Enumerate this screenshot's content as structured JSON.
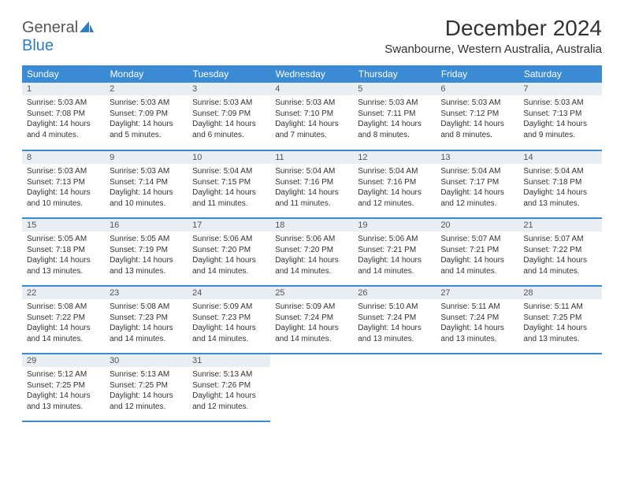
{
  "brand": {
    "name_top": "General",
    "name_bottom": "Blue",
    "top_color": "#666666",
    "bottom_color": "#2e7cc2",
    "icon_color": "#2e7cc2"
  },
  "title": "December 2024",
  "location": "Swanbourne, Western Australia, Australia",
  "header_bg": "#3b8bd4",
  "header_fg": "#ffffff",
  "daynum_bg": "#e9eef2",
  "row_divider": "#3b8bd4",
  "weekdays": [
    "Sunday",
    "Monday",
    "Tuesday",
    "Wednesday",
    "Thursday",
    "Friday",
    "Saturday"
  ],
  "weeks": [
    [
      {
        "n": "1",
        "sunrise": "Sunrise: 5:03 AM",
        "sunset": "Sunset: 7:08 PM",
        "day": "Daylight: 14 hours and 4 minutes."
      },
      {
        "n": "2",
        "sunrise": "Sunrise: 5:03 AM",
        "sunset": "Sunset: 7:09 PM",
        "day": "Daylight: 14 hours and 5 minutes."
      },
      {
        "n": "3",
        "sunrise": "Sunrise: 5:03 AM",
        "sunset": "Sunset: 7:09 PM",
        "day": "Daylight: 14 hours and 6 minutes."
      },
      {
        "n": "4",
        "sunrise": "Sunrise: 5:03 AM",
        "sunset": "Sunset: 7:10 PM",
        "day": "Daylight: 14 hours and 7 minutes."
      },
      {
        "n": "5",
        "sunrise": "Sunrise: 5:03 AM",
        "sunset": "Sunset: 7:11 PM",
        "day": "Daylight: 14 hours and 8 minutes."
      },
      {
        "n": "6",
        "sunrise": "Sunrise: 5:03 AM",
        "sunset": "Sunset: 7:12 PM",
        "day": "Daylight: 14 hours and 8 minutes."
      },
      {
        "n": "7",
        "sunrise": "Sunrise: 5:03 AM",
        "sunset": "Sunset: 7:13 PM",
        "day": "Daylight: 14 hours and 9 minutes."
      }
    ],
    [
      {
        "n": "8",
        "sunrise": "Sunrise: 5:03 AM",
        "sunset": "Sunset: 7:13 PM",
        "day": "Daylight: 14 hours and 10 minutes."
      },
      {
        "n": "9",
        "sunrise": "Sunrise: 5:03 AM",
        "sunset": "Sunset: 7:14 PM",
        "day": "Daylight: 14 hours and 10 minutes."
      },
      {
        "n": "10",
        "sunrise": "Sunrise: 5:04 AM",
        "sunset": "Sunset: 7:15 PM",
        "day": "Daylight: 14 hours and 11 minutes."
      },
      {
        "n": "11",
        "sunrise": "Sunrise: 5:04 AM",
        "sunset": "Sunset: 7:16 PM",
        "day": "Daylight: 14 hours and 11 minutes."
      },
      {
        "n": "12",
        "sunrise": "Sunrise: 5:04 AM",
        "sunset": "Sunset: 7:16 PM",
        "day": "Daylight: 14 hours and 12 minutes."
      },
      {
        "n": "13",
        "sunrise": "Sunrise: 5:04 AM",
        "sunset": "Sunset: 7:17 PM",
        "day": "Daylight: 14 hours and 12 minutes."
      },
      {
        "n": "14",
        "sunrise": "Sunrise: 5:04 AM",
        "sunset": "Sunset: 7:18 PM",
        "day": "Daylight: 14 hours and 13 minutes."
      }
    ],
    [
      {
        "n": "15",
        "sunrise": "Sunrise: 5:05 AM",
        "sunset": "Sunset: 7:18 PM",
        "day": "Daylight: 14 hours and 13 minutes."
      },
      {
        "n": "16",
        "sunrise": "Sunrise: 5:05 AM",
        "sunset": "Sunset: 7:19 PM",
        "day": "Daylight: 14 hours and 13 minutes."
      },
      {
        "n": "17",
        "sunrise": "Sunrise: 5:06 AM",
        "sunset": "Sunset: 7:20 PM",
        "day": "Daylight: 14 hours and 14 minutes."
      },
      {
        "n": "18",
        "sunrise": "Sunrise: 5:06 AM",
        "sunset": "Sunset: 7:20 PM",
        "day": "Daylight: 14 hours and 14 minutes."
      },
      {
        "n": "19",
        "sunrise": "Sunrise: 5:06 AM",
        "sunset": "Sunset: 7:21 PM",
        "day": "Daylight: 14 hours and 14 minutes."
      },
      {
        "n": "20",
        "sunrise": "Sunrise: 5:07 AM",
        "sunset": "Sunset: 7:21 PM",
        "day": "Daylight: 14 hours and 14 minutes."
      },
      {
        "n": "21",
        "sunrise": "Sunrise: 5:07 AM",
        "sunset": "Sunset: 7:22 PM",
        "day": "Daylight: 14 hours and 14 minutes."
      }
    ],
    [
      {
        "n": "22",
        "sunrise": "Sunrise: 5:08 AM",
        "sunset": "Sunset: 7:22 PM",
        "day": "Daylight: 14 hours and 14 minutes."
      },
      {
        "n": "23",
        "sunrise": "Sunrise: 5:08 AM",
        "sunset": "Sunset: 7:23 PM",
        "day": "Daylight: 14 hours and 14 minutes."
      },
      {
        "n": "24",
        "sunrise": "Sunrise: 5:09 AM",
        "sunset": "Sunset: 7:23 PM",
        "day": "Daylight: 14 hours and 14 minutes."
      },
      {
        "n": "25",
        "sunrise": "Sunrise: 5:09 AM",
        "sunset": "Sunset: 7:24 PM",
        "day": "Daylight: 14 hours and 14 minutes."
      },
      {
        "n": "26",
        "sunrise": "Sunrise: 5:10 AM",
        "sunset": "Sunset: 7:24 PM",
        "day": "Daylight: 14 hours and 13 minutes."
      },
      {
        "n": "27",
        "sunrise": "Sunrise: 5:11 AM",
        "sunset": "Sunset: 7:24 PM",
        "day": "Daylight: 14 hours and 13 minutes."
      },
      {
        "n": "28",
        "sunrise": "Sunrise: 5:11 AM",
        "sunset": "Sunset: 7:25 PM",
        "day": "Daylight: 14 hours and 13 minutes."
      }
    ],
    [
      {
        "n": "29",
        "sunrise": "Sunrise: 5:12 AM",
        "sunset": "Sunset: 7:25 PM",
        "day": "Daylight: 14 hours and 13 minutes."
      },
      {
        "n": "30",
        "sunrise": "Sunrise: 5:13 AM",
        "sunset": "Sunset: 7:25 PM",
        "day": "Daylight: 14 hours and 12 minutes."
      },
      {
        "n": "31",
        "sunrise": "Sunrise: 5:13 AM",
        "sunset": "Sunset: 7:26 PM",
        "day": "Daylight: 14 hours and 12 minutes."
      },
      null,
      null,
      null,
      null
    ]
  ]
}
